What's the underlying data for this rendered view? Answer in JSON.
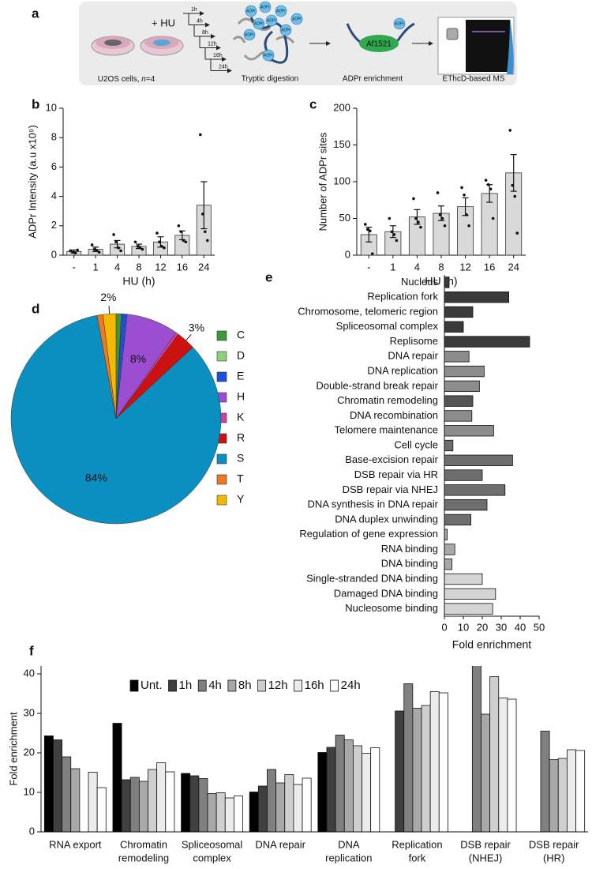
{
  "schematic": {
    "panel_label": "a",
    "plus_hu": "+ HU",
    "timepoints": [
      "1h",
      "4h",
      "8h",
      "12h",
      "16h",
      "24h"
    ],
    "cells_label": [
      "U2OS cells, ",
      "n",
      "=4"
    ],
    "steps": [
      "Tryptic digestion",
      "ADPr enrichment",
      "EThcD-based MS"
    ],
    "adpr": "ADPr",
    "antibody": "Af1521"
  },
  "chart_data": [
    {
      "type": "bar",
      "panel_label": "b",
      "xlabel": "HU (h)",
      "ylabel": "ADPr Intensity (a.u x10⁹)",
      "categories": [
        "-",
        "1",
        "4",
        "8",
        "12",
        "16",
        "24"
      ],
      "values": [
        0.25,
        0.4,
        0.75,
        0.6,
        0.9,
        1.35,
        3.4
      ],
      "errors": [
        0.1,
        0.15,
        0.25,
        0.15,
        0.35,
        0.3,
        1.6
      ],
      "points": [
        [
          0.3,
          0.2,
          0.15,
          0.35
        ],
        [
          0.7,
          0.4,
          0.3,
          0.2
        ],
        [
          1.4,
          0.9,
          0.5,
          0.3
        ],
        [
          0.9,
          0.6,
          0.5,
          0.4
        ],
        [
          1.5,
          0.9,
          0.6,
          0.5
        ],
        [
          2.0,
          1.6,
          1.0,
          0.9
        ],
        [
          8.2,
          2.8,
          1.6,
          1.0
        ]
      ],
      "color": "#d9d9d9",
      "ylim": [
        0,
        10
      ],
      "yticks": [
        0,
        2,
        4,
        6,
        8,
        10
      ]
    },
    {
      "type": "bar",
      "panel_label": "c",
      "xlabel": "HU (h)",
      "ylabel": "Number of ADPr sites",
      "categories": [
        "-",
        "1",
        "4",
        "8",
        "12",
        "16",
        "24"
      ],
      "values": [
        28,
        32,
        52,
        57,
        66,
        84,
        112
      ],
      "errors": [
        10,
        8,
        10,
        10,
        12,
        12,
        25
      ],
      "points": [
        [
          42,
          35,
          33,
          2
        ],
        [
          50,
          32,
          28,
          20
        ],
        [
          77,
          50,
          45,
          38
        ],
        [
          85,
          55,
          50,
          40
        ],
        [
          92,
          82,
          55,
          40
        ],
        [
          102,
          96,
          90,
          50
        ],
        [
          170,
          95,
          80,
          30
        ]
      ],
      "color": "#d9d9d9",
      "ylim": [
        0,
        200
      ],
      "yticks": [
        0,
        50,
        100,
        150,
        200
      ]
    },
    {
      "type": "pie",
      "panel_label": "d",
      "categories": [
        "C",
        "D",
        "E",
        "H",
        "K",
        "R",
        "S",
        "T",
        "Y"
      ],
      "values": [
        0.8,
        0.1,
        0.8,
        8,
        0.4,
        3,
        84,
        0.9,
        2
      ],
      "value_labels": [
        null,
        null,
        null,
        "8%",
        null,
        "3%",
        "84%",
        null,
        "2%"
      ],
      "colors": [
        "#3a9a3a",
        "#8fd07a",
        "#1f4fd8",
        "#9b4fd0",
        "#d63fa0",
        "#cc1111",
        "#0a8fc0",
        "#f07820",
        "#f5b800"
      ]
    },
    {
      "type": "hbar",
      "panel_label": "e",
      "xlabel": "Fold enrichment",
      "categories": [
        "Nucleus",
        "Replication fork",
        "Chromosome, telomeric region",
        "Spliceosomal complex",
        "Replisome",
        "DNA repair",
        "DNA replication",
        "Double-strand break repair",
        "Chromatin remodeling",
        "DNA recombination",
        "Telomere maintenance",
        "Cell cycle",
        "Base-excision repair",
        "DSB repair via HR",
        "DSB repair via NHEJ",
        "DNA synthesis in DNA repair",
        "DNA duplex unwinding",
        "Regulation of gene expression",
        "RNA binding",
        "DNA binding",
        "Single-stranded DNA binding",
        "Damaged DNA binding",
        "Nucleosome binding"
      ],
      "values": [
        2.5,
        34,
        15,
        10,
        45,
        13,
        21,
        18.5,
        15,
        14.5,
        26,
        4.5,
        36,
        20,
        32,
        22.5,
        14,
        1.5,
        5.5,
        4,
        20,
        27,
        25.5
      ],
      "colors": [
        "#3a3a3a",
        "#3a3a3a",
        "#3a3a3a",
        "#3a3a3a",
        "#3a3a3a",
        "#8c8c8c",
        "#8c8c8c",
        "#8c8c8c",
        "#555555",
        "#8c8c8c",
        "#8c8c8c",
        "#6e6e6e",
        "#6e6e6e",
        "#6e6e6e",
        "#6e6e6e",
        "#6e6e6e",
        "#6e6e6e",
        "#a8a8a8",
        "#a8a8a8",
        "#a8a8a8",
        "#d4d4d4",
        "#d4d4d4",
        "#d4d4d4"
      ],
      "xlim": [
        0,
        50
      ],
      "xticks": [
        0,
        10,
        20,
        30,
        40,
        50
      ]
    },
    {
      "type": "grouped_bar",
      "panel_label": "f",
      "ylabel": "Fold enrichment",
      "categories": [
        [
          "RNA export"
        ],
        [
          "Chromatin",
          "remodeling"
        ],
        [
          "Spliceosomal",
          "complex"
        ],
        [
          "DNA repair"
        ],
        [
          "DNA",
          "replication"
        ],
        [
          "Replication",
          "fork"
        ],
        [
          "DSB repair",
          "(NHEJ)"
        ],
        [
          "DSB repair",
          "(HR)"
        ]
      ],
      "series": [
        {
          "name": "Unt.",
          "color": "#000000",
          "values": [
            24.3,
            27.5,
            14.8,
            10.1,
            20.1,
            null,
            null,
            null
          ]
        },
        {
          "name": "1h",
          "color": "#404040",
          "values": [
            23.3,
            13.2,
            14.2,
            11.6,
            21.4,
            30.6,
            null,
            null
          ]
        },
        {
          "name": "4h",
          "color": "#808080",
          "values": [
            19,
            13.8,
            13.5,
            15.8,
            24.5,
            37.5,
            43,
            25.5
          ]
        },
        {
          "name": "8h",
          "color": "#a8a8a8",
          "values": [
            16,
            12.8,
            9.7,
            12.4,
            23.3,
            31.3,
            29.8,
            18.3
          ]
        },
        {
          "name": "12h",
          "color": "#cfcfcf",
          "values": [
            null,
            15.8,
            9.9,
            14.5,
            21.8,
            32,
            39.3,
            18.6
          ]
        },
        {
          "name": "16h",
          "color": "#ececec",
          "values": [
            15.1,
            17.5,
            8.6,
            12,
            19.9,
            35.5,
            33.9,
            20.8
          ]
        },
        {
          "name": "24h",
          "color": "#ffffff",
          "values": [
            11.2,
            15.2,
            9.1,
            13.6,
            21.3,
            35.2,
            33.6,
            20.6
          ]
        }
      ],
      "ylim": [
        0,
        42
      ],
      "yticks": [
        0,
        10,
        20,
        30,
        40
      ]
    }
  ]
}
